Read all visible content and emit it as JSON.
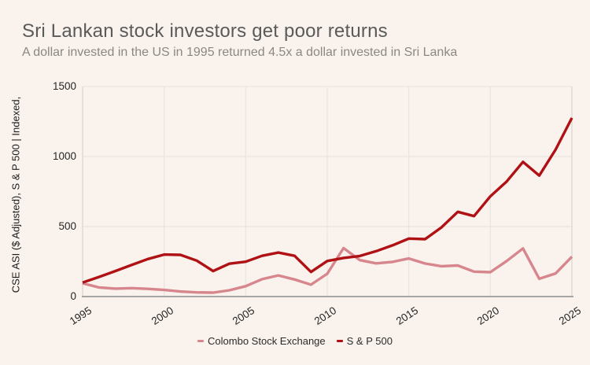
{
  "header": {
    "title": "Sri Lankan stock investors get poor returns",
    "subtitle": "A dollar invested in the US in 1995 returned 4.5x a dollar invested in Sri Lanka"
  },
  "colors": {
    "background": "#faf3ed",
    "title_text": "#5a5a5a",
    "subtitle_text": "#8b8884",
    "gridline": "#eae5e0",
    "plot_border": "#dcd7d1",
    "axis_line": "#8c8c8c",
    "cse_line": "#d7868d",
    "sp500_line": "#af1115"
  },
  "chart_data": {
    "type": "line",
    "title": "Sri Lankan stock investors get poor returns",
    "subtitle": "A dollar invested in the US in 1995 returned 4.5x a dollar invested in Sri Lanka",
    "xlabel": "",
    "ylabel": "CSE ASI ($ Adjusted), S & P 500 | Indexed,",
    "xlim": [
      1995,
      2025
    ],
    "ylim": [
      0,
      1500
    ],
    "x_ticks": [
      1995,
      2000,
      2005,
      2010,
      2015,
      2020,
      2025
    ],
    "y_ticks": [
      0,
      500,
      1000,
      1500
    ],
    "grid": true,
    "legend_position": "bottom",
    "x": [
      1995,
      1996,
      1997,
      1998,
      1999,
      2000,
      2001,
      2002,
      2003,
      2004,
      2005,
      2006,
      2007,
      2008,
      2009,
      2010,
      2011,
      2012,
      2013,
      2014,
      2015,
      2016,
      2017,
      2018,
      2019,
      2020,
      2021,
      2022,
      2023,
      2024,
      2025
    ],
    "series": [
      {
        "name": "Colombo Stock Exchange",
        "color": "#d7868d",
        "values": [
          95,
          65,
          57,
          60,
          55,
          47,
          36,
          30,
          28,
          45,
          74,
          124,
          151,
          122,
          85,
          163,
          346,
          260,
          237,
          248,
          272,
          236,
          217,
          222,
          178,
          174,
          254,
          344,
          127,
          165,
          285
        ]
      },
      {
        "name": "S & P 500",
        "color": "#af1115",
        "values": [
          100,
          140,
          182,
          225,
          268,
          300,
          298,
          257,
          182,
          235,
          249,
          291,
          314,
          291,
          176,
          254,
          276,
          290,
          324,
          366,
          414,
          410,
          494,
          605,
          575,
          716,
          822,
          962,
          864,
          1050,
          1276
        ]
      }
    ]
  }
}
